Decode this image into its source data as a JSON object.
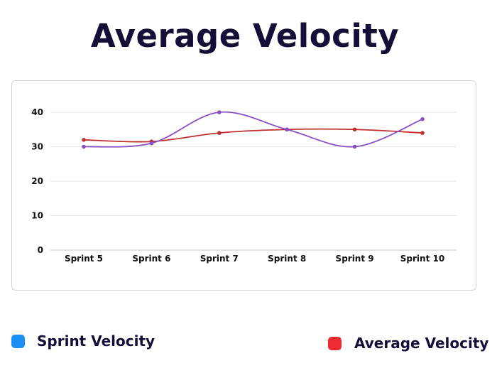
{
  "chart_data": {
    "type": "line",
    "title": "Average Velocity",
    "categories": [
      "Sprint 5",
      "Sprint 6",
      "Sprint 7",
      "Sprint 8",
      "Sprint 9",
      "Sprint 10"
    ],
    "series": [
      {
        "name": "Sprint Velocity",
        "values": [
          30,
          31,
          40,
          35,
          30,
          38
        ],
        "color": "#8a4fc4",
        "legend_color": "#1a8ff5"
      },
      {
        "name": "Average Velocity",
        "values": [
          32,
          31.5,
          34,
          35,
          35,
          34
        ],
        "color": "#c0302d",
        "legend_color": "#f02a32"
      }
    ],
    "yticks": [
      0,
      10,
      20,
      30,
      40
    ],
    "ylim": [
      0,
      40
    ],
    "xlabel": "",
    "ylabel": "",
    "grid": true,
    "legend_position": "bottom"
  }
}
